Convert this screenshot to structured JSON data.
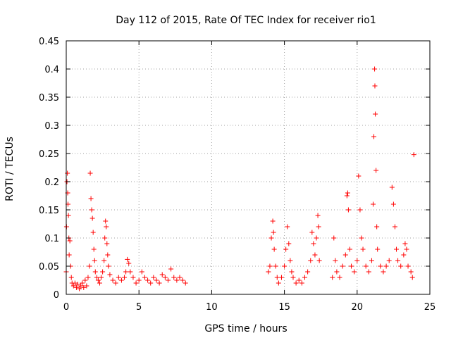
{
  "chart_data": {
    "type": "scatter",
    "title": "Day 112 of 2015, Rate Of TEC Index for receiver rio1",
    "xlabel": "GPS time / hours",
    "ylabel": "ROTI / TECUs",
    "xlim": [
      0,
      25
    ],
    "ylim": [
      0,
      0.45
    ],
    "xticks": [
      0,
      5,
      10,
      15,
      20,
      25
    ],
    "xtick_labels": [
      "0",
      "5",
      "10",
      "15",
      "20",
      "25"
    ],
    "yticks": [
      0,
      0.05,
      0.1,
      0.15,
      0.2,
      0.25,
      0.3,
      0.35,
      0.4,
      0.45
    ],
    "ytick_labels": [
      "0",
      "0.05",
      "0.1",
      "0.15",
      "0.2",
      "0.25",
      "0.3",
      "0.35",
      "0.4",
      "0.45"
    ],
    "grid": true,
    "marker": "+",
    "color": "#ff0000",
    "series": [
      {
        "points": [
          [
            0.0,
            0.04
          ],
          [
            0.02,
            0.12
          ],
          [
            0.05,
            0.2
          ],
          [
            0.08,
            0.215
          ],
          [
            0.1,
            0.18
          ],
          [
            0.12,
            0.16
          ],
          [
            0.15,
            0.14
          ],
          [
            0.18,
            0.1
          ],
          [
            0.2,
            0.07
          ],
          [
            0.25,
            0.095
          ],
          [
            0.3,
            0.05
          ],
          [
            0.35,
            0.03
          ],
          [
            0.4,
            0.02
          ],
          [
            0.5,
            0.015
          ],
          [
            0.6,
            0.02
          ],
          [
            0.7,
            0.012
          ],
          [
            0.8,
            0.018
          ],
          [
            0.9,
            0.01
          ],
          [
            1.0,
            0.015
          ],
          [
            1.1,
            0.02
          ],
          [
            1.2,
            0.012
          ],
          [
            1.3,
            0.025
          ],
          [
            1.4,
            0.015
          ],
          [
            1.5,
            0.03
          ],
          [
            1.6,
            0.05
          ],
          [
            1.65,
            0.215
          ],
          [
            1.7,
            0.17
          ],
          [
            1.75,
            0.15
          ],
          [
            1.8,
            0.135
          ],
          [
            1.85,
            0.11
          ],
          [
            1.9,
            0.08
          ],
          [
            1.95,
            0.06
          ],
          [
            2.0,
            0.04
          ],
          [
            2.1,
            0.03
          ],
          [
            2.2,
            0.025
          ],
          [
            2.3,
            0.02
          ],
          [
            2.4,
            0.03
          ],
          [
            2.5,
            0.04
          ],
          [
            2.6,
            0.06
          ],
          [
            2.65,
            0.1
          ],
          [
            2.7,
            0.13
          ],
          [
            2.75,
            0.12
          ],
          [
            2.8,
            0.09
          ],
          [
            2.85,
            0.07
          ],
          [
            2.9,
            0.05
          ],
          [
            3.0,
            0.035
          ],
          [
            3.2,
            0.025
          ],
          [
            3.4,
            0.02
          ],
          [
            3.6,
            0.03
          ],
          [
            3.8,
            0.025
          ],
          [
            4.0,
            0.03
          ],
          [
            4.1,
            0.04
          ],
          [
            4.2,
            0.062
          ],
          [
            4.3,
            0.055
          ],
          [
            4.4,
            0.04
          ],
          [
            4.6,
            0.03
          ],
          [
            4.8,
            0.02
          ],
          [
            5.0,
            0.025
          ],
          [
            5.2,
            0.04
          ],
          [
            5.4,
            0.03
          ],
          [
            5.6,
            0.025
          ],
          [
            5.8,
            0.02
          ],
          [
            6.0,
            0.03
          ],
          [
            6.2,
            0.025
          ],
          [
            6.4,
            0.02
          ],
          [
            6.6,
            0.035
          ],
          [
            6.8,
            0.03
          ],
          [
            7.0,
            0.025
          ],
          [
            7.2,
            0.045
          ],
          [
            7.4,
            0.03
          ],
          [
            7.6,
            0.025
          ],
          [
            7.8,
            0.03
          ],
          [
            8.0,
            0.025
          ],
          [
            8.2,
            0.02
          ],
          [
            13.9,
            0.04
          ],
          [
            14.0,
            0.05
          ],
          [
            14.1,
            0.1
          ],
          [
            14.2,
            0.13
          ],
          [
            14.25,
            0.11
          ],
          [
            14.3,
            0.08
          ],
          [
            14.4,
            0.05
          ],
          [
            14.5,
            0.03
          ],
          [
            14.6,
            0.02
          ],
          [
            14.8,
            0.03
          ],
          [
            15.0,
            0.05
          ],
          [
            15.1,
            0.08
          ],
          [
            15.2,
            0.12
          ],
          [
            15.3,
            0.09
          ],
          [
            15.4,
            0.06
          ],
          [
            15.5,
            0.04
          ],
          [
            15.6,
            0.03
          ],
          [
            15.8,
            0.02
          ],
          [
            16.0,
            0.025
          ],
          [
            16.2,
            0.02
          ],
          [
            16.4,
            0.03
          ],
          [
            16.6,
            0.04
          ],
          [
            16.8,
            0.06
          ],
          [
            16.9,
            0.11
          ],
          [
            17.0,
            0.09
          ],
          [
            17.1,
            0.07
          ],
          [
            17.2,
            0.1
          ],
          [
            17.3,
            0.14
          ],
          [
            17.35,
            0.12
          ],
          [
            17.4,
            0.06
          ],
          [
            18.3,
            0.03
          ],
          [
            18.4,
            0.1
          ],
          [
            18.5,
            0.06
          ],
          [
            18.6,
            0.04
          ],
          [
            18.8,
            0.03
          ],
          [
            19.0,
            0.05
          ],
          [
            19.2,
            0.07
          ],
          [
            19.3,
            0.175
          ],
          [
            19.35,
            0.18
          ],
          [
            19.4,
            0.15
          ],
          [
            19.5,
            0.08
          ],
          [
            19.6,
            0.05
          ],
          [
            19.8,
            0.04
          ],
          [
            20.0,
            0.06
          ],
          [
            20.1,
            0.21
          ],
          [
            20.2,
            0.15
          ],
          [
            20.3,
            0.1
          ],
          [
            20.4,
            0.08
          ],
          [
            20.6,
            0.05
          ],
          [
            20.8,
            0.04
          ],
          [
            21.0,
            0.06
          ],
          [
            21.1,
            0.16
          ],
          [
            21.15,
            0.28
          ],
          [
            21.2,
            0.4
          ],
          [
            21.22,
            0.37
          ],
          [
            21.25,
            0.32
          ],
          [
            21.3,
            0.22
          ],
          [
            21.35,
            0.12
          ],
          [
            21.4,
            0.08
          ],
          [
            21.6,
            0.05
          ],
          [
            21.8,
            0.04
          ],
          [
            22.0,
            0.05
          ],
          [
            22.2,
            0.06
          ],
          [
            22.4,
            0.19
          ],
          [
            22.5,
            0.16
          ],
          [
            22.6,
            0.12
          ],
          [
            22.7,
            0.08
          ],
          [
            22.8,
            0.06
          ],
          [
            23.0,
            0.05
          ],
          [
            23.2,
            0.07
          ],
          [
            23.3,
            0.09
          ],
          [
            23.4,
            0.08
          ],
          [
            23.5,
            0.05
          ],
          [
            23.7,
            0.04
          ],
          [
            23.8,
            0.03
          ],
          [
            23.9,
            0.248
          ]
        ]
      }
    ]
  }
}
